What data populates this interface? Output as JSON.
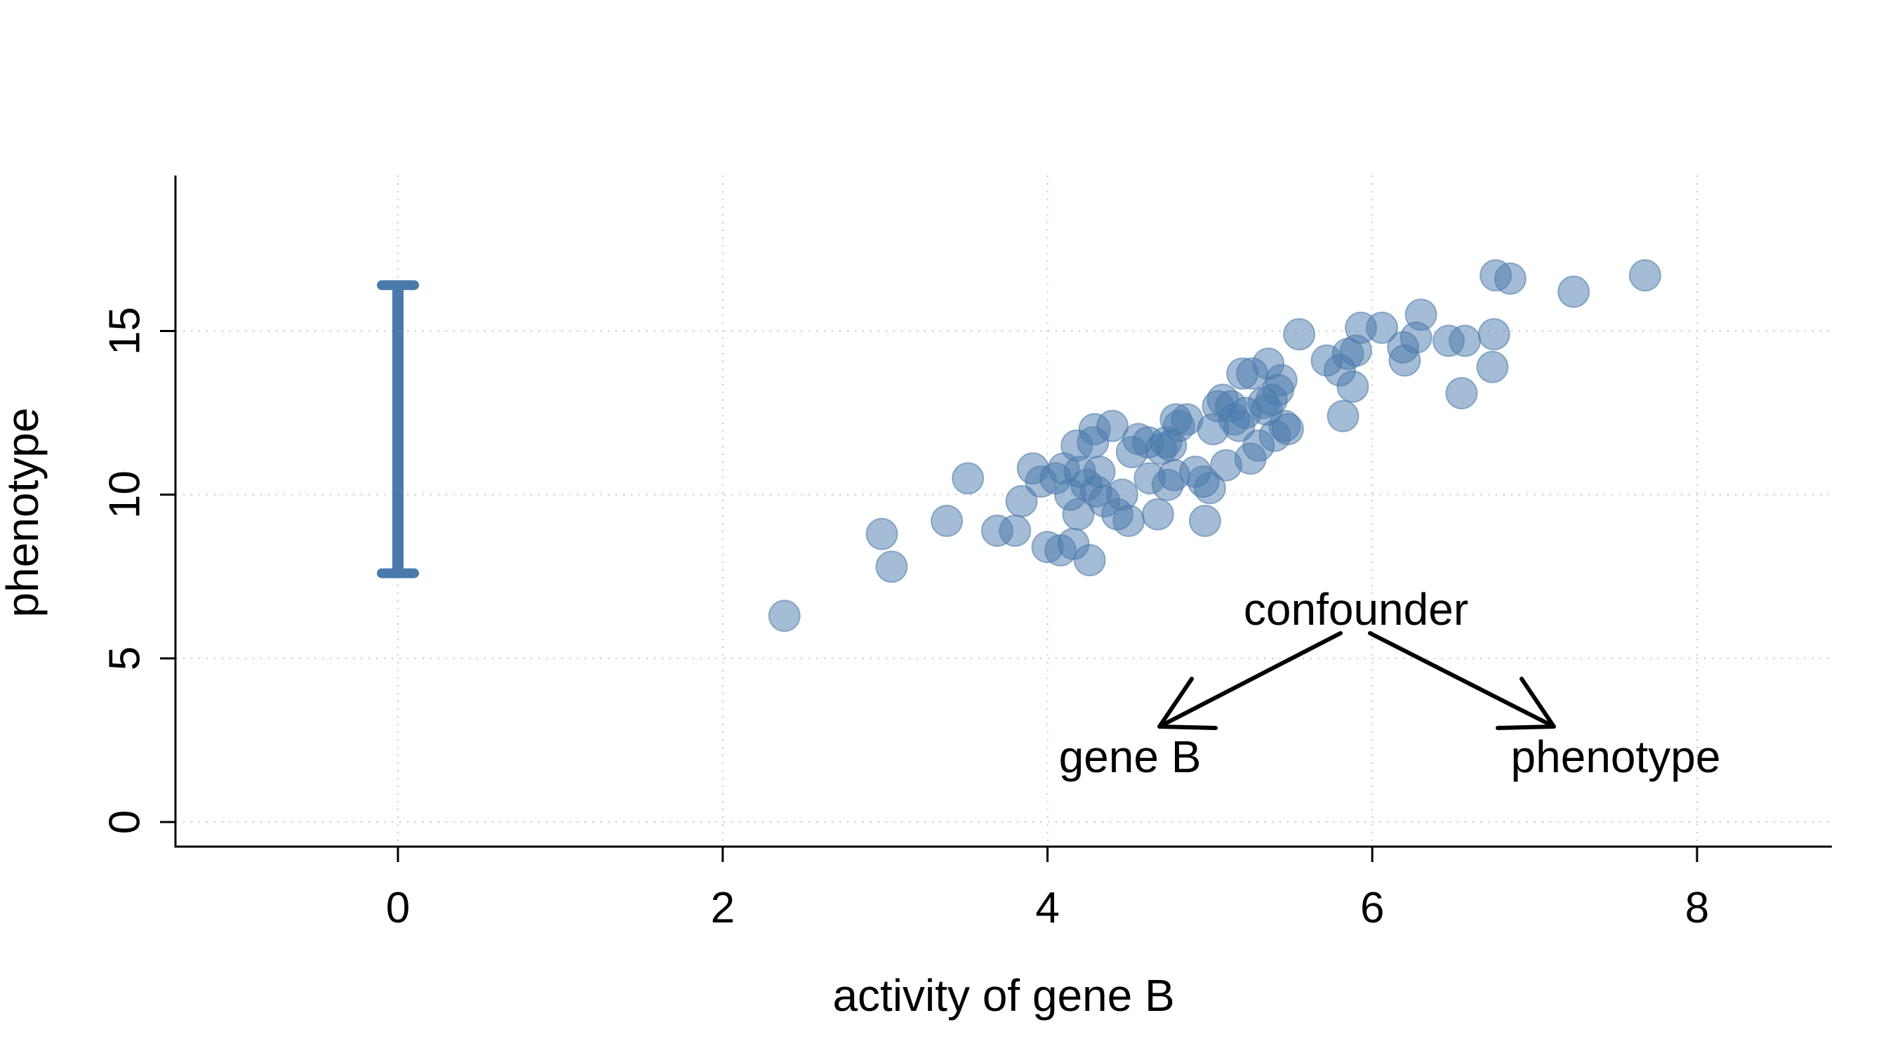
{
  "chart_data": {
    "type": "scatter",
    "title": "",
    "xlabel": "activity of gene B",
    "ylabel": "phenotype",
    "xlim": [
      -1.37,
      8.83
    ],
    "ylim": [
      -0.75,
      19.75
    ],
    "x_ticks": [
      0,
      2,
      4,
      6,
      8
    ],
    "y_ticks": [
      0,
      5,
      10,
      15
    ],
    "grid": true,
    "point_color": "#4a7aab",
    "range_bar": {
      "x": 0,
      "y_low": 7.6,
      "y_high": 16.4,
      "color": "#4a7aab"
    },
    "points": [
      [
        2.38,
        6.3
      ],
      [
        2.98,
        8.8
      ],
      [
        3.04,
        7.8
      ],
      [
        3.38,
        9.2
      ],
      [
        3.51,
        10.5
      ],
      [
        3.69,
        8.9
      ],
      [
        3.8,
        8.9
      ],
      [
        3.84,
        9.8
      ],
      [
        3.91,
        10.8
      ],
      [
        3.96,
        10.4
      ],
      [
        4.0,
        8.4
      ],
      [
        4.05,
        10.5
      ],
      [
        4.08,
        8.3
      ],
      [
        4.1,
        10.8
      ],
      [
        4.14,
        10.0
      ],
      [
        4.16,
        8.5
      ],
      [
        4.18,
        11.5
      ],
      [
        4.19,
        9.4
      ],
      [
        4.2,
        10.7
      ],
      [
        4.24,
        10.3
      ],
      [
        4.26,
        8.0
      ],
      [
        4.28,
        11.6
      ],
      [
        4.29,
        12.0
      ],
      [
        4.3,
        10.1
      ],
      [
        4.32,
        10.7
      ],
      [
        4.35,
        9.8
      ],
      [
        4.4,
        12.1
      ],
      [
        4.43,
        9.4
      ],
      [
        4.46,
        10.0
      ],
      [
        4.5,
        9.2
      ],
      [
        4.52,
        11.3
      ],
      [
        4.56,
        11.7
      ],
      [
        4.62,
        11.6
      ],
      [
        4.63,
        10.5
      ],
      [
        4.68,
        9.4
      ],
      [
        4.7,
        11.4
      ],
      [
        4.73,
        11.6
      ],
      [
        4.74,
        10.3
      ],
      [
        4.76,
        11.5
      ],
      [
        4.78,
        10.6
      ],
      [
        4.79,
        12.3
      ],
      [
        4.81,
        12.1
      ],
      [
        4.86,
        12.3
      ],
      [
        4.91,
        10.7
      ],
      [
        4.96,
        10.4
      ],
      [
        4.97,
        9.2
      ],
      [
        5.0,
        10.2
      ],
      [
        5.02,
        12.0
      ],
      [
        5.05,
        12.7
      ],
      [
        5.08,
        12.9
      ],
      [
        5.1,
        10.9
      ],
      [
        5.13,
        12.7
      ],
      [
        5.15,
        12.3
      ],
      [
        5.18,
        12.1
      ],
      [
        5.2,
        13.7
      ],
      [
        5.22,
        12.5
      ],
      [
        5.25,
        11.1
      ],
      [
        5.26,
        13.7
      ],
      [
        5.3,
        11.5
      ],
      [
        5.33,
        12.8
      ],
      [
        5.35,
        12.6
      ],
      [
        5.36,
        14.0
      ],
      [
        5.38,
        12.9
      ],
      [
        5.4,
        11.8
      ],
      [
        5.42,
        13.2
      ],
      [
        5.44,
        13.5
      ],
      [
        5.46,
        12.1
      ],
      [
        5.48,
        12.0
      ],
      [
        5.55,
        14.9
      ],
      [
        5.72,
        14.1
      ],
      [
        5.8,
        13.8
      ],
      [
        5.82,
        12.4
      ],
      [
        5.85,
        14.3
      ],
      [
        5.88,
        13.3
      ],
      [
        5.9,
        14.4
      ],
      [
        5.93,
        15.1
      ],
      [
        6.06,
        15.1
      ],
      [
        6.19,
        14.5
      ],
      [
        6.2,
        14.1
      ],
      [
        6.27,
        14.8
      ],
      [
        6.3,
        15.5
      ],
      [
        6.47,
        14.7
      ],
      [
        6.55,
        13.1
      ],
      [
        6.57,
        14.7
      ],
      [
        6.74,
        13.9
      ],
      [
        6.75,
        14.9
      ],
      [
        6.76,
        16.7
      ],
      [
        6.85,
        16.6
      ],
      [
        7.24,
        16.2
      ],
      [
        7.68,
        16.7
      ]
    ],
    "annotations": {
      "top": "confounder",
      "left": "gene B",
      "right": "phenotype"
    }
  }
}
